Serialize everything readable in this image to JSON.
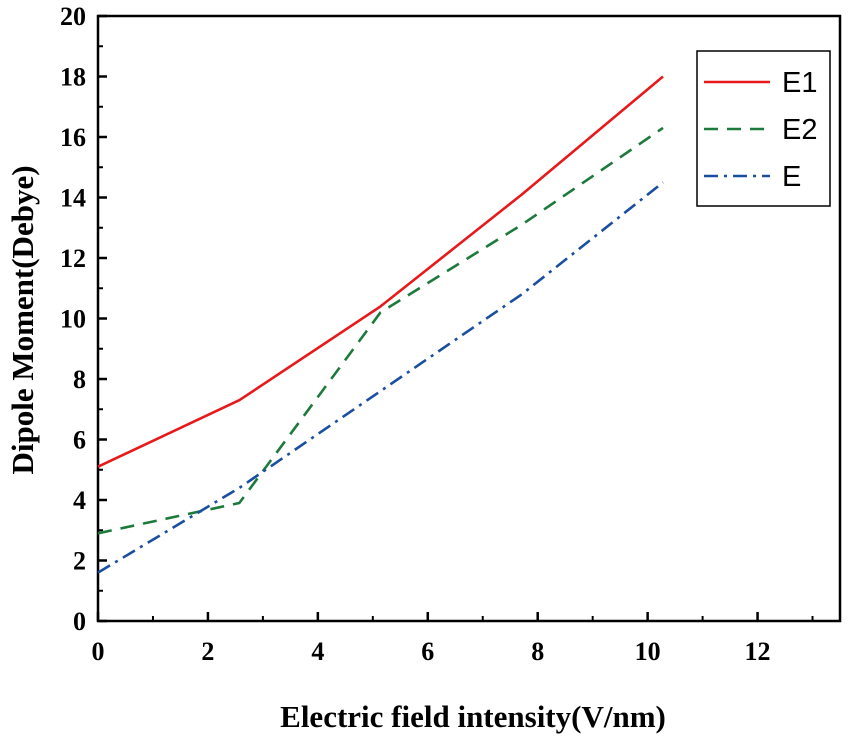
{
  "chart_data": {
    "type": "line",
    "title": "",
    "xlabel": "Electric field intensity(V/nm)",
    "ylabel": "Dipole Moment(Debye)",
    "xlim": [
      0,
      13.5
    ],
    "ylim": [
      0,
      20
    ],
    "xticks": [
      "0",
      "2",
      "4",
      "6",
      "8",
      "10",
      "12"
    ],
    "yticks": [
      "0",
      "2",
      "4",
      "6",
      "8",
      "10",
      "12",
      "14",
      "16",
      "18",
      "20"
    ],
    "legend_position": "top-right",
    "grid": false,
    "series": [
      {
        "name": "E1",
        "color": "#e8191b",
        "style": "solid",
        "x": [
          0,
          2.57,
          5.14,
          7.71,
          10.28
        ],
        "y": [
          5.1,
          7.3,
          10.4,
          14.1,
          18.0
        ]
      },
      {
        "name": "E2",
        "color": "#1e7a3c",
        "style": "dash",
        "x": [
          0,
          2.57,
          5.14,
          7.71,
          10.28
        ],
        "y": [
          2.9,
          3.9,
          10.2,
          13.1,
          16.3
        ]
      },
      {
        "name": "E",
        "color": "#1a4fa0",
        "style": "dashdot",
        "x": [
          0,
          2.57,
          5.14,
          7.71,
          10.28
        ],
        "y": [
          1.6,
          4.4,
          7.6,
          10.8,
          14.5
        ]
      }
    ]
  }
}
